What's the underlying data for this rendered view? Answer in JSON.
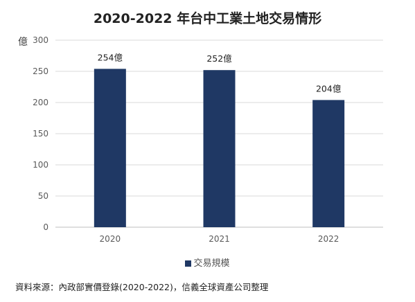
{
  "chart_data": {
    "type": "bar",
    "title": "2020-2022 年台中工業土地交易情形",
    "unit_label": "億",
    "categories": [
      "2020",
      "2021",
      "2022"
    ],
    "series": [
      {
        "name": "交易規模",
        "values": [
          254,
          252,
          204
        ],
        "color": "#1f3864"
      }
    ],
    "data_labels": [
      "254億",
      "252億",
      "204億"
    ],
    "ylim": [
      0,
      300
    ],
    "yticks": [
      0,
      50,
      100,
      150,
      200,
      250,
      300
    ],
    "grid": true,
    "legend_position": "bottom"
  },
  "footer": {
    "source": "資料來源：內政部實價登錄(2020-2022)，信義全球資產公司整理"
  }
}
